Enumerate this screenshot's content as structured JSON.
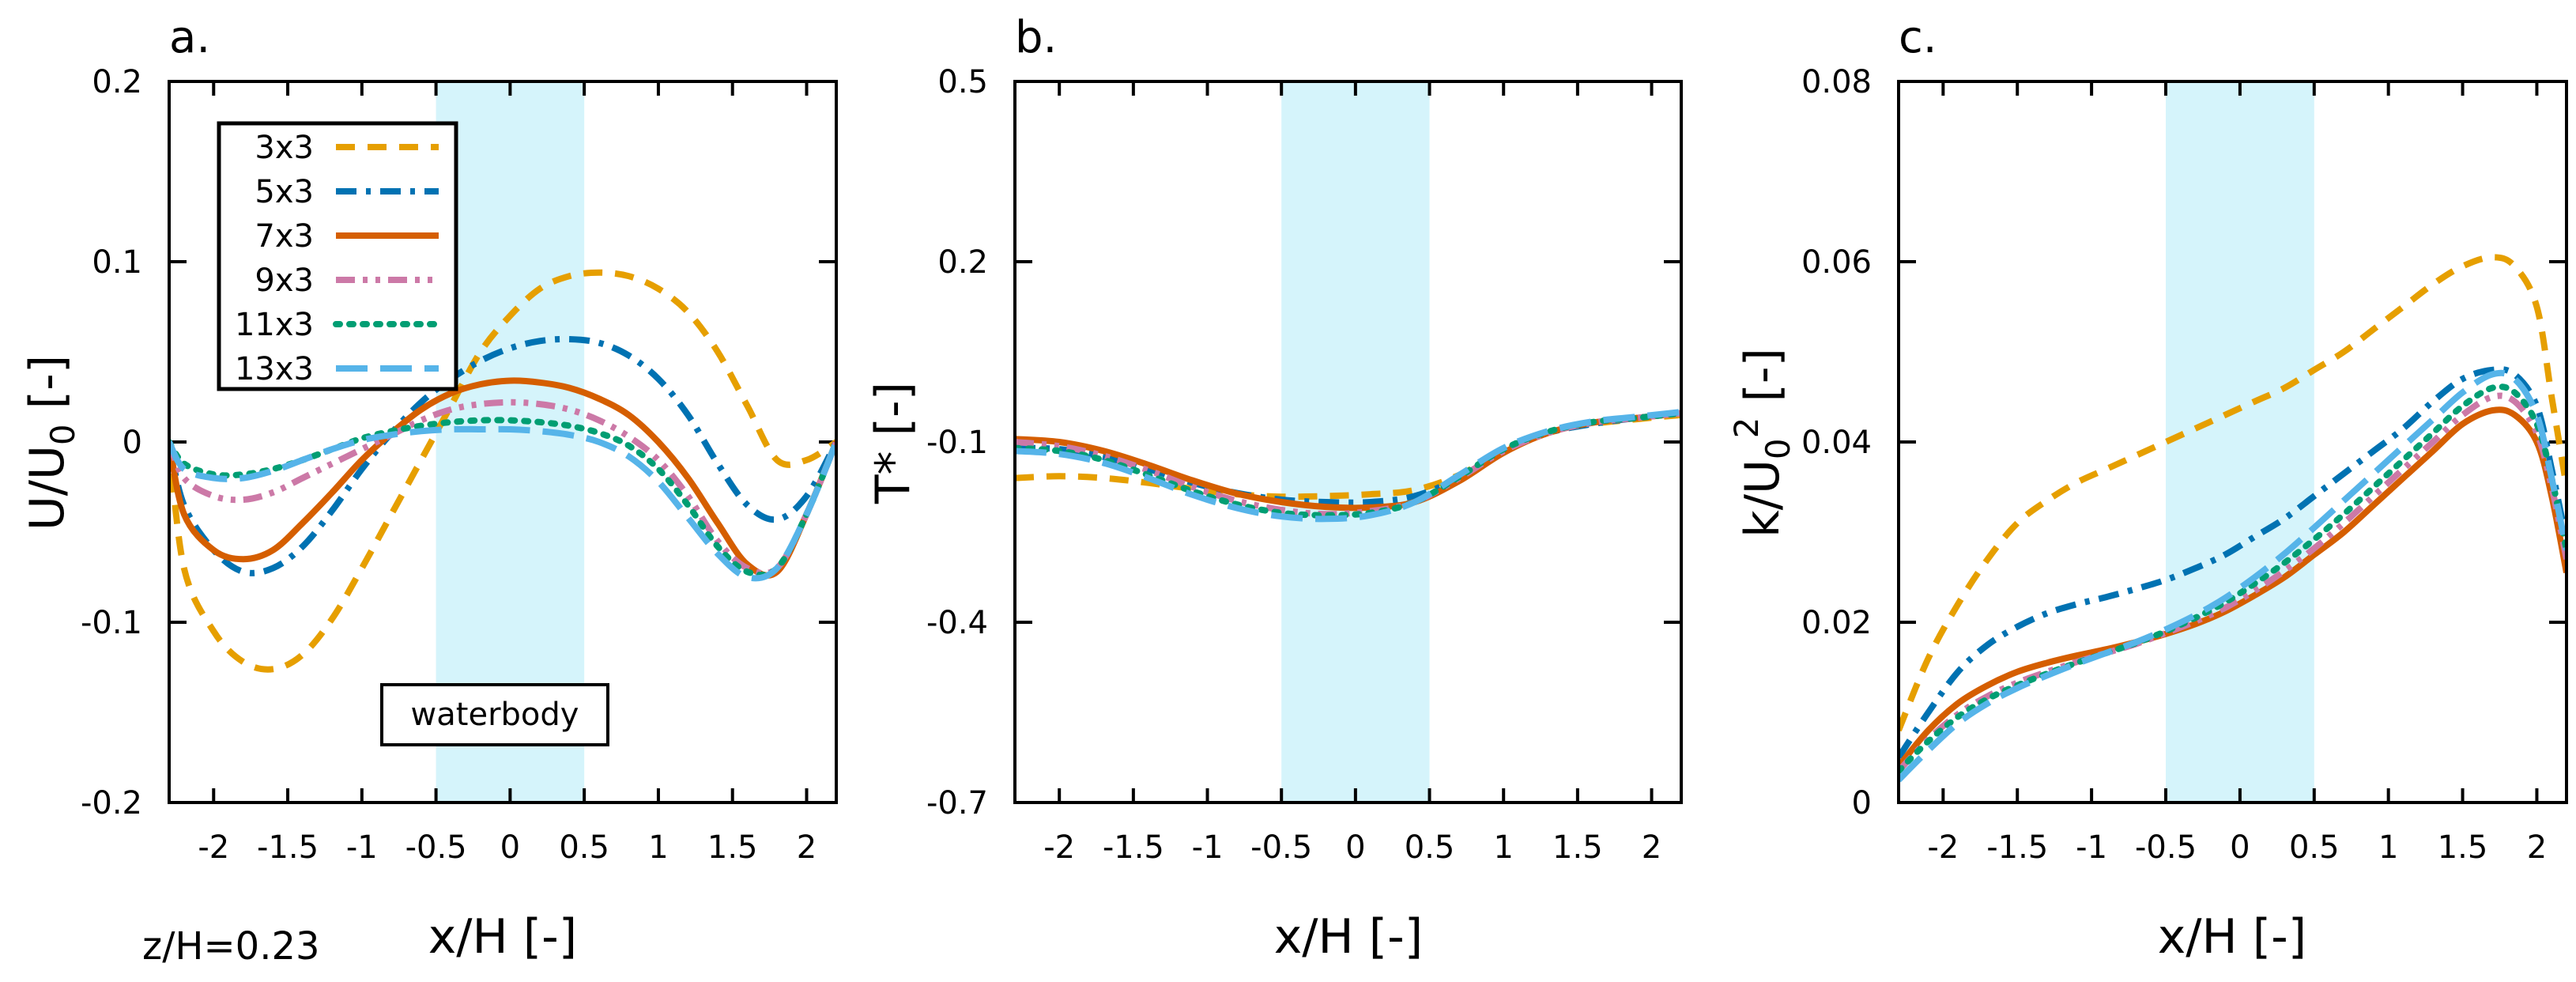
{
  "figure": {
    "xlabel": "x/H [-]",
    "height_note": "z/H=0.23",
    "shaded_region_label": "waterbody",
    "shade_color": "#d5f4fb"
  },
  "legend": [
    {
      "key": "s3",
      "label": "3x3",
      "color": "#e69f00",
      "dash": "dashed"
    },
    {
      "key": "s5",
      "label": "5x3",
      "color": "#0072b2",
      "dash": "dashdot"
    },
    {
      "key": "s7",
      "label": "7x3",
      "color": "#d55e00",
      "dash": "solid"
    },
    {
      "key": "s9",
      "label": "9x3",
      "color": "#cc79a7",
      "dash": "dashdotdot"
    },
    {
      "key": "s11",
      "label": "11x3",
      "color": "#009e73",
      "dash": "dotted"
    },
    {
      "key": "s13",
      "label": "13x3",
      "color": "#56b4e9",
      "dash": "longdash"
    }
  ],
  "chart_data": [
    {
      "type": "line",
      "panel": "a.",
      "ylabel": "U/U0 [-]",
      "xlim": [
        -2.3,
        2.2
      ],
      "ylim": [
        -0.2,
        0.2
      ],
      "xticks": [
        -2,
        -1.5,
        -1,
        -0.5,
        0,
        0.5,
        1,
        1.5,
        2
      ],
      "xtick_labels": [
        "-2",
        "-1.5",
        "-1",
        "-0.5",
        "0",
        "0.5",
        "1",
        "1.5",
        "2"
      ],
      "yticks": [
        -0.2,
        -0.1,
        0,
        0.1,
        0.2
      ],
      "ytick_labels": [
        "-0.2",
        "-0.1",
        "0",
        "0.1",
        "0.2"
      ],
      "shaded_x": [
        -0.5,
        0.5
      ],
      "series": [
        {
          "key": "s3",
          "name": "3x3",
          "x": [
            -2.3,
            -2.2,
            -2.0,
            -1.8,
            -1.6,
            -1.4,
            -1.2,
            -1.0,
            -0.8,
            -0.6,
            -0.4,
            -0.2,
            0.0,
            0.2,
            0.4,
            0.6,
            0.8,
            1.0,
            1.2,
            1.4,
            1.6,
            1.8,
            2.0,
            2.2
          ],
          "y": [
            0.0,
            -0.07,
            -0.105,
            -0.122,
            -0.126,
            -0.118,
            -0.098,
            -0.07,
            -0.04,
            -0.01,
            0.02,
            0.05,
            0.07,
            0.085,
            0.092,
            0.094,
            0.092,
            0.085,
            0.072,
            0.05,
            0.02,
            -0.01,
            -0.01,
            0.0
          ]
        },
        {
          "key": "s5",
          "name": "5x3",
          "x": [
            -2.3,
            -2.2,
            -2.0,
            -1.8,
            -1.6,
            -1.4,
            -1.2,
            -1.0,
            -0.8,
            -0.6,
            -0.4,
            -0.2,
            0.0,
            0.2,
            0.4,
            0.6,
            0.8,
            1.0,
            1.2,
            1.4,
            1.6,
            1.8,
            2.0,
            2.2
          ],
          "y": [
            0.0,
            -0.035,
            -0.06,
            -0.072,
            -0.07,
            -0.058,
            -0.038,
            -0.015,
            0.005,
            0.022,
            0.035,
            0.045,
            0.052,
            0.056,
            0.057,
            0.055,
            0.048,
            0.035,
            0.015,
            -0.012,
            -0.035,
            -0.043,
            -0.03,
            0.0
          ]
        },
        {
          "key": "s7",
          "name": "7x3",
          "x": [
            -2.3,
            -2.2,
            -2.0,
            -1.8,
            -1.6,
            -1.4,
            -1.2,
            -1.0,
            -0.8,
            -0.6,
            -0.4,
            -0.2,
            0.0,
            0.2,
            0.4,
            0.6,
            0.8,
            1.0,
            1.2,
            1.4,
            1.6,
            1.8,
            2.0,
            2.2
          ],
          "y": [
            0.0,
            -0.04,
            -0.06,
            -0.065,
            -0.06,
            -0.045,
            -0.028,
            -0.01,
            0.005,
            0.018,
            0.027,
            0.032,
            0.034,
            0.033,
            0.03,
            0.024,
            0.015,
            0.0,
            -0.02,
            -0.045,
            -0.068,
            -0.072,
            -0.04,
            0.0
          ]
        },
        {
          "key": "s9",
          "name": "9x3",
          "x": [
            -2.3,
            -2.2,
            -2.0,
            -1.8,
            -1.6,
            -1.4,
            -1.2,
            -1.0,
            -0.8,
            -0.6,
            -0.4,
            -0.2,
            0.0,
            0.2,
            0.4,
            0.6,
            0.8,
            1.0,
            1.2,
            1.4,
            1.6,
            1.8,
            2.0,
            2.2
          ],
          "y": [
            0.0,
            -0.02,
            -0.03,
            -0.032,
            -0.028,
            -0.02,
            -0.012,
            -0.004,
            0.004,
            0.012,
            0.018,
            0.021,
            0.022,
            0.021,
            0.018,
            0.012,
            0.003,
            -0.01,
            -0.03,
            -0.055,
            -0.07,
            -0.07,
            -0.04,
            0.0
          ]
        },
        {
          "key": "s11",
          "name": "11x3",
          "x": [
            -2.3,
            -2.2,
            -2.0,
            -1.8,
            -1.6,
            -1.4,
            -1.2,
            -1.0,
            -0.8,
            -0.6,
            -0.4,
            -0.2,
            0.0,
            0.2,
            0.4,
            0.6,
            0.8,
            1.0,
            1.2,
            1.4,
            1.6,
            1.8,
            2.0,
            2.2
          ],
          "y": [
            0.0,
            -0.012,
            -0.018,
            -0.018,
            -0.015,
            -0.01,
            -0.004,
            0.002,
            0.006,
            0.009,
            0.011,
            0.012,
            0.012,
            0.011,
            0.009,
            0.005,
            -0.002,
            -0.015,
            -0.035,
            -0.058,
            -0.072,
            -0.07,
            -0.04,
            0.0
          ]
        },
        {
          "key": "s13",
          "name": "13x3",
          "x": [
            -2.3,
            -2.2,
            -2.0,
            -1.8,
            -1.6,
            -1.4,
            -1.2,
            -1.0,
            -0.8,
            -0.6,
            -0.4,
            -0.2,
            0.0,
            0.2,
            0.4,
            0.6,
            0.8,
            1.0,
            1.2,
            1.4,
            1.6,
            1.8,
            2.0,
            2.2
          ],
          "y": [
            0.0,
            -0.015,
            -0.02,
            -0.02,
            -0.016,
            -0.01,
            -0.004,
            0.001,
            0.004,
            0.006,
            0.007,
            0.007,
            0.007,
            0.006,
            0.004,
            0.0,
            -0.008,
            -0.022,
            -0.042,
            -0.062,
            -0.075,
            -0.07,
            -0.04,
            0.0
          ]
        }
      ]
    },
    {
      "type": "line",
      "panel": "b.",
      "ylabel": "T* [-]",
      "xlim": [
        -2.3,
        2.2
      ],
      "ylim": [
        -0.7,
        0.5
      ],
      "xticks": [
        -2,
        -1.5,
        -1,
        -0.5,
        0,
        0.5,
        1,
        1.5,
        2
      ],
      "xtick_labels": [
        "-2",
        "-1.5",
        "-1",
        "-0.5",
        "0",
        "0.5",
        "1",
        "1.5",
        "2"
      ],
      "yticks": [
        -0.7,
        -0.4,
        -0.1,
        0.2,
        0.5
      ],
      "ytick_labels": [
        "-0.7",
        "-0.4",
        "-0.1",
        "0.2",
        "0.5"
      ],
      "shaded_x": [
        -0.5,
        0.5
      ],
      "series": [
        {
          "key": "s3",
          "name": "3x3",
          "x": [
            -2.3,
            -2.0,
            -1.7,
            -1.4,
            -1.1,
            -0.8,
            -0.5,
            -0.2,
            0.1,
            0.4,
            0.7,
            1.0,
            1.3,
            1.6,
            1.9,
            2.2
          ],
          "y": [
            -0.16,
            -0.157,
            -0.16,
            -0.168,
            -0.178,
            -0.187,
            -0.191,
            -0.19,
            -0.187,
            -0.18,
            -0.155,
            -0.115,
            -0.085,
            -0.07,
            -0.062,
            -0.055
          ]
        },
        {
          "key": "s5",
          "name": "5x3",
          "x": [
            -2.3,
            -2.0,
            -1.7,
            -1.4,
            -1.1,
            -0.8,
            -0.5,
            -0.2,
            0.1,
            0.4,
            0.7,
            1.0,
            1.3,
            1.6,
            1.9,
            2.2
          ],
          "y": [
            -0.11,
            -0.112,
            -0.125,
            -0.145,
            -0.168,
            -0.185,
            -0.196,
            -0.2,
            -0.2,
            -0.19,
            -0.16,
            -0.115,
            -0.085,
            -0.07,
            -0.06,
            -0.052
          ]
        },
        {
          "key": "s7",
          "name": "7x3",
          "x": [
            -2.3,
            -2.0,
            -1.7,
            -1.4,
            -1.1,
            -0.8,
            -0.5,
            -0.2,
            0.1,
            0.4,
            0.7,
            1.0,
            1.3,
            1.6,
            1.9,
            2.2
          ],
          "y": [
            -0.095,
            -0.1,
            -0.115,
            -0.138,
            -0.164,
            -0.186,
            -0.2,
            -0.208,
            -0.209,
            -0.2,
            -0.165,
            -0.118,
            -0.085,
            -0.068,
            -0.06,
            -0.052
          ]
        },
        {
          "key": "s9",
          "name": "9x3",
          "x": [
            -2.3,
            -2.0,
            -1.7,
            -1.4,
            -1.1,
            -0.8,
            -0.5,
            -0.2,
            0.1,
            0.4,
            0.7,
            1.0,
            1.3,
            1.6,
            1.9,
            2.2
          ],
          "y": [
            -0.1,
            -0.107,
            -0.123,
            -0.147,
            -0.175,
            -0.198,
            -0.213,
            -0.22,
            -0.215,
            -0.2,
            -0.16,
            -0.115,
            -0.085,
            -0.068,
            -0.06,
            -0.052
          ]
        },
        {
          "key": "s11",
          "name": "11x3",
          "x": [
            -2.3,
            -2.0,
            -1.7,
            -1.4,
            -1.1,
            -0.8,
            -0.5,
            -0.2,
            0.1,
            0.4,
            0.7,
            1.0,
            1.3,
            1.6,
            1.9,
            2.2
          ],
          "y": [
            -0.11,
            -0.115,
            -0.13,
            -0.155,
            -0.182,
            -0.204,
            -0.218,
            -0.222,
            -0.218,
            -0.2,
            -0.158,
            -0.112,
            -0.083,
            -0.067,
            -0.06,
            -0.052
          ]
        },
        {
          "key": "s13",
          "name": "13x3",
          "x": [
            -2.3,
            -2.0,
            -1.7,
            -1.4,
            -1.1,
            -0.8,
            -0.5,
            -0.2,
            0.1,
            0.4,
            0.7,
            1.0,
            1.3,
            1.6,
            1.9,
            2.2
          ],
          "y": [
            -0.115,
            -0.12,
            -0.135,
            -0.16,
            -0.188,
            -0.21,
            -0.224,
            -0.228,
            -0.222,
            -0.2,
            -0.155,
            -0.11,
            -0.082,
            -0.066,
            -0.058,
            -0.05
          ]
        }
      ]
    },
    {
      "type": "line",
      "panel": "c.",
      "ylabel": "k/U0^2 [-]",
      "xlim": [
        -2.3,
        2.2
      ],
      "ylim": [
        0,
        0.08
      ],
      "xticks": [
        -2,
        -1.5,
        -1,
        -0.5,
        0,
        0.5,
        1,
        1.5,
        2
      ],
      "xtick_labels": [
        "-2",
        "-1.5",
        "-1",
        "-0.5",
        "0",
        "0.5",
        "1",
        "1.5",
        "2"
      ],
      "yticks": [
        0,
        0.02,
        0.04,
        0.06,
        0.08
      ],
      "ytick_labels": [
        "0",
        "0.02",
        "0.04",
        "0.06",
        "0.08"
      ],
      "shaded_x": [
        -0.5,
        0.5
      ],
      "series": [
        {
          "key": "s3",
          "name": "3x3",
          "x": [
            -2.3,
            -2.1,
            -1.9,
            -1.7,
            -1.5,
            -1.3,
            -1.1,
            -0.9,
            -0.7,
            -0.5,
            -0.3,
            -0.1,
            0.1,
            0.3,
            0.5,
            0.7,
            0.9,
            1.1,
            1.3,
            1.5,
            1.7,
            1.85,
            2.0,
            2.1,
            2.2
          ],
          "y": [
            0.008,
            0.016,
            0.022,
            0.027,
            0.031,
            0.0335,
            0.0355,
            0.037,
            0.0385,
            0.04,
            0.0415,
            0.043,
            0.0445,
            0.046,
            0.048,
            0.05,
            0.0525,
            0.055,
            0.0575,
            0.0595,
            0.0605,
            0.0595,
            0.055,
            0.045,
            0.035
          ]
        },
        {
          "key": "s5",
          "name": "5x3",
          "x": [
            -2.3,
            -2.1,
            -1.9,
            -1.7,
            -1.5,
            -1.3,
            -1.1,
            -0.9,
            -0.7,
            -0.5,
            -0.3,
            -0.1,
            0.1,
            0.3,
            0.5,
            0.7,
            0.9,
            1.1,
            1.3,
            1.5,
            1.7,
            1.85,
            2.0,
            2.1,
            2.2
          ],
          "y": [
            0.005,
            0.01,
            0.0145,
            0.0175,
            0.0195,
            0.021,
            0.022,
            0.0228,
            0.0237,
            0.0247,
            0.026,
            0.0275,
            0.0295,
            0.0315,
            0.034,
            0.0365,
            0.039,
            0.0415,
            0.0445,
            0.047,
            0.048,
            0.0475,
            0.044,
            0.037,
            0.029
          ]
        },
        {
          "key": "s7",
          "name": "7x3",
          "x": [
            -2.3,
            -2.1,
            -1.9,
            -1.7,
            -1.5,
            -1.3,
            -1.1,
            -0.9,
            -0.7,
            -0.5,
            -0.3,
            -0.1,
            0.1,
            0.3,
            0.5,
            0.7,
            0.9,
            1.1,
            1.3,
            1.5,
            1.7,
            1.85,
            2.0,
            2.1,
            2.2
          ],
          "y": [
            0.004,
            0.008,
            0.011,
            0.013,
            0.0145,
            0.0155,
            0.0163,
            0.017,
            0.0178,
            0.0187,
            0.0198,
            0.0212,
            0.023,
            0.025,
            0.0275,
            0.03,
            0.033,
            0.036,
            0.039,
            0.042,
            0.0435,
            0.043,
            0.04,
            0.034,
            0.0255
          ]
        },
        {
          "key": "s9",
          "name": "9x3",
          "x": [
            -2.3,
            -2.1,
            -1.9,
            -1.7,
            -1.5,
            -1.3,
            -1.1,
            -0.9,
            -0.7,
            -0.5,
            -0.3,
            -0.1,
            0.1,
            0.3,
            0.5,
            0.7,
            0.9,
            1.1,
            1.3,
            1.5,
            1.7,
            1.85,
            2.0,
            2.1,
            2.2
          ],
          "y": [
            0.0035,
            0.007,
            0.0098,
            0.0118,
            0.0133,
            0.0145,
            0.0156,
            0.0166,
            0.0176,
            0.0188,
            0.0201,
            0.0216,
            0.0235,
            0.0257,
            0.0282,
            0.031,
            0.034,
            0.037,
            0.04,
            0.043,
            0.045,
            0.0445,
            0.041,
            0.035,
            0.027
          ]
        },
        {
          "key": "s11",
          "name": "11x3",
          "x": [
            -2.3,
            -2.1,
            -1.9,
            -1.7,
            -1.5,
            -1.3,
            -1.1,
            -0.9,
            -0.7,
            -0.5,
            -0.3,
            -0.1,
            0.1,
            0.3,
            0.5,
            0.7,
            0.9,
            1.1,
            1.3,
            1.5,
            1.7,
            1.85,
            2.0,
            2.1,
            2.2
          ],
          "y": [
            0.0035,
            0.0068,
            0.0095,
            0.0115,
            0.013,
            0.0143,
            0.0155,
            0.0166,
            0.0177,
            0.019,
            0.0205,
            0.0222,
            0.0243,
            0.0266,
            0.0292,
            0.032,
            0.035,
            0.038,
            0.041,
            0.044,
            0.046,
            0.0455,
            0.042,
            0.036,
            0.028
          ]
        },
        {
          "key": "s13",
          "name": "13x3",
          "x": [
            -2.3,
            -2.1,
            -1.9,
            -1.7,
            -1.5,
            -1.3,
            -1.1,
            -0.9,
            -0.7,
            -0.5,
            -0.3,
            -0.1,
            0.1,
            0.3,
            0.5,
            0.7,
            0.9,
            1.1,
            1.3,
            1.5,
            1.7,
            1.85,
            2.0,
            2.1,
            2.2
          ],
          "y": [
            0.0025,
            0.0058,
            0.0088,
            0.011,
            0.0127,
            0.0141,
            0.0154,
            0.0166,
            0.0178,
            0.0192,
            0.0208,
            0.0227,
            0.025,
            0.0276,
            0.0305,
            0.0335,
            0.0365,
            0.0395,
            0.0425,
            0.0455,
            0.0475,
            0.047,
            0.043,
            0.036,
            0.028
          ]
        }
      ]
    }
  ]
}
